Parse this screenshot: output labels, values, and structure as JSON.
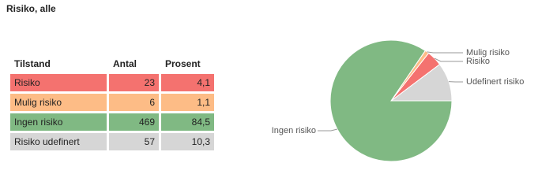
{
  "title": "Risiko, alle",
  "table": {
    "header": [
      "Tilstand",
      "Antal",
      "Prosent"
    ],
    "rows": [
      [
        "Risiko",
        "23",
        "4,1"
      ],
      [
        "Mulig risiko",
        "6",
        "1,1"
      ],
      [
        "Ingen risiko",
        "469",
        "84,5"
      ],
      [
        "Risiko udefinert",
        "57",
        "10,3"
      ]
    ]
  },
  "chart_data": {
    "type": "pie",
    "categories": [
      "Risiko",
      "Mulig risiko",
      "Ingen risiko",
      "Udefinert risiko"
    ],
    "values": [
      23,
      6,
      469,
      57
    ],
    "colors": [
      "#f4726f",
      "#fdbc86",
      "#80b983",
      "#d6d6d6"
    ]
  }
}
